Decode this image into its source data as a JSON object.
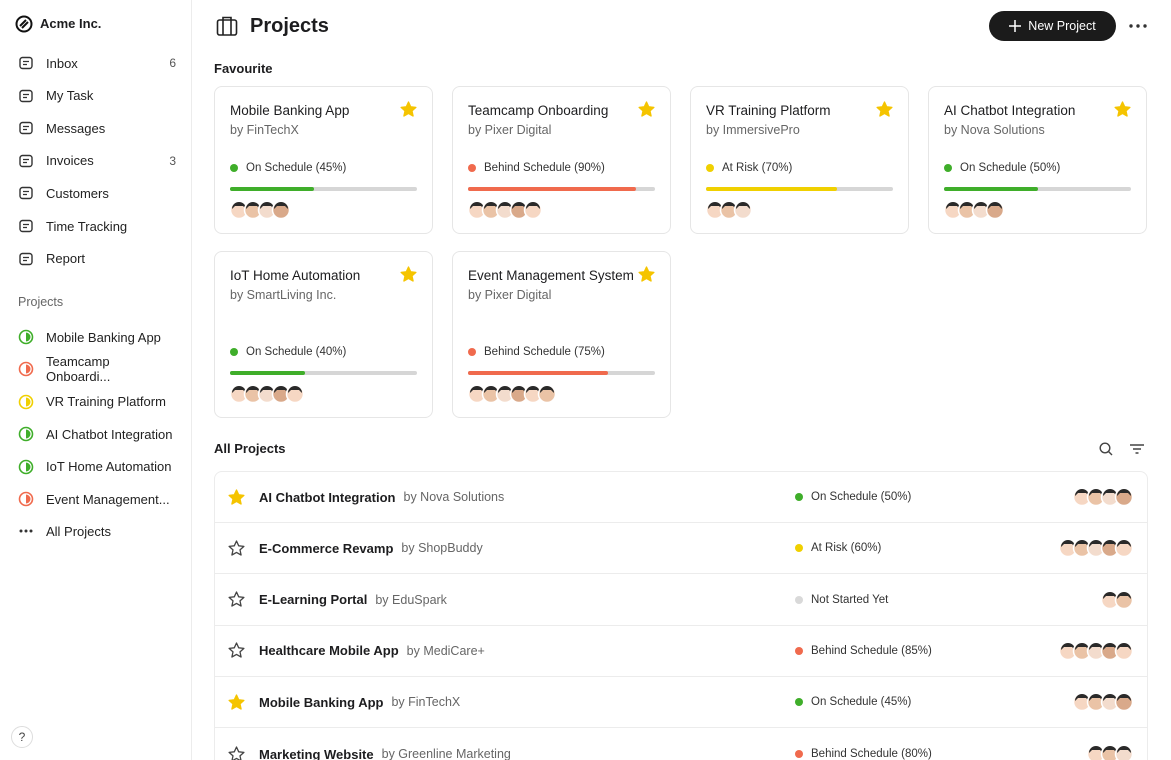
{
  "sidebar": {
    "brand": "Acme Inc.",
    "nav": [
      {
        "label": "Inbox",
        "count": 6
      },
      {
        "label": "My Task"
      },
      {
        "label": "Messages"
      },
      {
        "label": "Invoices",
        "count": 3
      },
      {
        "label": "Customers"
      },
      {
        "label": "Time Tracking"
      },
      {
        "label": "Report"
      }
    ],
    "projects_heading": "Projects",
    "projects": [
      {
        "label": "Mobile Banking App",
        "color": "#3fae2a"
      },
      {
        "label": "Teamcamp Onboardi...",
        "color": "#f06a4d"
      },
      {
        "label": "VR Training Platform",
        "color": "#f0d000"
      },
      {
        "label": "AI Chatbot Integration",
        "color": "#3fae2a"
      },
      {
        "label": "IoT Home Automation",
        "color": "#3fae2a"
      },
      {
        "label": "Event Management...",
        "color": "#f06a4d"
      }
    ],
    "all_projects": "All Projects",
    "help": "?"
  },
  "header": {
    "title": "Projects",
    "button": "New Project"
  },
  "favourites": {
    "heading": "Favourite",
    "cards": [
      {
        "name": "Mobile Banking App",
        "by": "by FinTechX",
        "status": "On Schedule (45%)",
        "progress": 45,
        "color": "#3fae2a",
        "members": 4
      },
      {
        "name": "Teamcamp Onboarding",
        "by": "by Pixer Digital",
        "status": "Behind Schedule (90%)",
        "progress": 90,
        "color": "#f06a4d",
        "members": 5
      },
      {
        "name": "VR Training Platform",
        "by": "by ImmersivePro",
        "status": "At Risk (70%)",
        "progress": 70,
        "color": "#f0d000",
        "members": 3
      },
      {
        "name": "AI Chatbot Integration",
        "by": "by Nova Solutions",
        "status": "On Schedule (50%)",
        "progress": 50,
        "color": "#3fae2a",
        "members": 4
      },
      {
        "name": "IoT Home Automation",
        "by": "by SmartLiving Inc.",
        "status": "On Schedule (40%)",
        "progress": 40,
        "color": "#3fae2a",
        "members": 5
      },
      {
        "name": "Event Management System",
        "by": "by Pixer Digital",
        "status": "Behind Schedule (75%)",
        "progress": 75,
        "color": "#f06a4d",
        "members": 6
      }
    ]
  },
  "all_projects": {
    "heading": "All Projects",
    "rows": [
      {
        "name": "AI Chatbot Integration",
        "by": "by Nova Solutions",
        "status": "On Schedule (50%)",
        "color": "#3fae2a",
        "starred": true,
        "members": 4
      },
      {
        "name": "E-Commerce Revamp",
        "by": "by ShopBuddy",
        "status": "At Risk (60%)",
        "color": "#f0d000",
        "starred": false,
        "members": 5
      },
      {
        "name": "E-Learning Portal",
        "by": "by EduSpark",
        "status": "Not Started Yet",
        "color": "#d9d9d9",
        "starred": false,
        "members": 2
      },
      {
        "name": "Healthcare Mobile App",
        "by": "by MediCare+",
        "status": "Behind Schedule (85%)",
        "color": "#f06a4d",
        "starred": false,
        "members": 5
      },
      {
        "name": "Mobile Banking App",
        "by": "by FinTechX",
        "status": "On Schedule (45%)",
        "color": "#3fae2a",
        "starred": true,
        "members": 4
      },
      {
        "name": "Marketing Website",
        "by": "by Greenline Marketing",
        "status": "Behind Schedule (80%)",
        "color": "#f06a4d",
        "starred": false,
        "members": 3
      }
    ]
  }
}
